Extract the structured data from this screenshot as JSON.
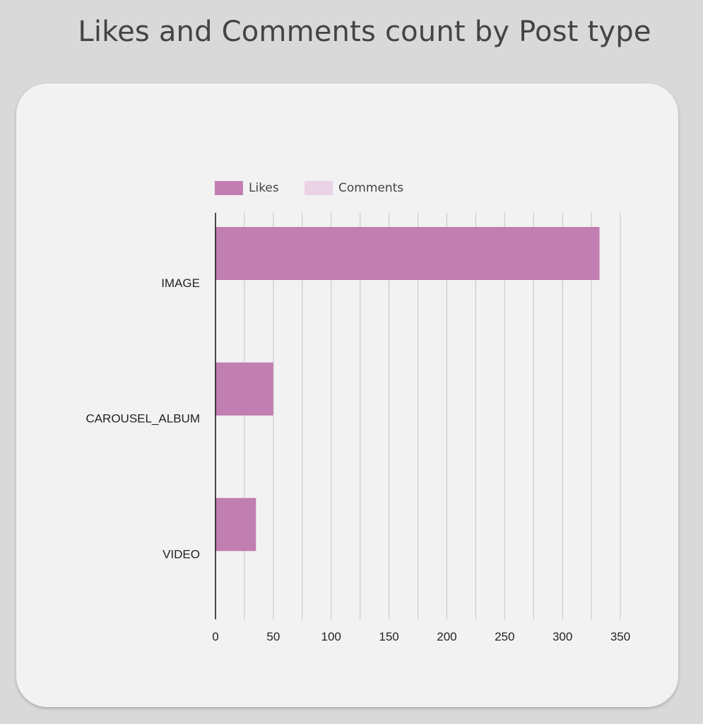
{
  "page": {
    "title": "Likes and Comments count by Post type"
  },
  "chart_data": {
    "type": "bar",
    "orientation": "horizontal",
    "categories": [
      "IMAGE",
      "CAROUSEL_ALBUM",
      "VIDEO"
    ],
    "series": [
      {
        "name": "Likes",
        "values": [
          332,
          50,
          35
        ],
        "color": "#c17eb1"
      },
      {
        "name": "Comments",
        "values": [
          0,
          0,
          0
        ],
        "color": "#ead3e5"
      }
    ],
    "x_ticks": [
      0,
      50,
      100,
      150,
      200,
      250,
      300,
      350
    ],
    "xlim": [
      0,
      350
    ],
    "grid": true,
    "legend": "top",
    "title": "Likes and Comments count by Post type",
    "xlabel": "",
    "ylabel": ""
  }
}
